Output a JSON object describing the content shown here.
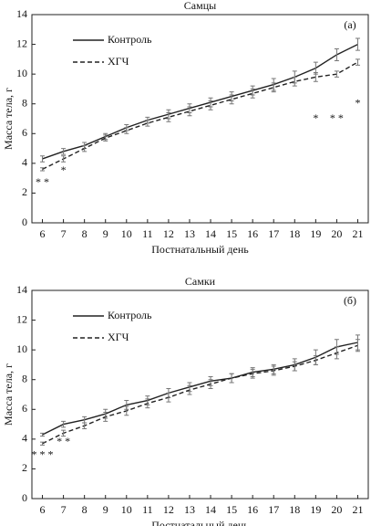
{
  "chart_data": [
    {
      "type": "line",
      "title": "Самцы",
      "panel_label": "(а)",
      "xlabel": "Постнатальный день",
      "ylabel": "Масса тела, г",
      "x": [
        6,
        7,
        8,
        9,
        10,
        11,
        12,
        13,
        14,
        15,
        16,
        17,
        18,
        19,
        20,
        21
      ],
      "xlim": [
        5.5,
        21.5
      ],
      "xticks": [
        6,
        7,
        8,
        9,
        10,
        11,
        12,
        13,
        14,
        15,
        16,
        17,
        18,
        19,
        20,
        21
      ],
      "ylim": [
        0,
        14
      ],
      "yticks": [
        0,
        2,
        4,
        6,
        8,
        10,
        12,
        14
      ],
      "series": [
        {
          "name": "Контроль",
          "color": "#222222",
          "dash": false,
          "values": [
            4.3,
            4.8,
            5.2,
            5.8,
            6.4,
            6.9,
            7.3,
            7.7,
            8.1,
            8.5,
            8.9,
            9.3,
            9.8,
            10.4,
            11.3,
            12.0
          ],
          "errors": [
            0.2,
            0.2,
            0.2,
            0.2,
            0.2,
            0.2,
            0.3,
            0.3,
            0.3,
            0.3,
            0.3,
            0.4,
            0.4,
            0.4,
            0.4,
            0.4
          ]
        },
        {
          "name": "ХГЧ",
          "color": "#222222",
          "dash": true,
          "values": [
            3.6,
            4.3,
            5.0,
            5.7,
            6.2,
            6.7,
            7.1,
            7.5,
            7.9,
            8.3,
            8.7,
            9.1,
            9.5,
            9.8,
            10.0,
            10.8
          ],
          "errors": [
            0.1,
            0.2,
            0.2,
            0.2,
            0.2,
            0.2,
            0.3,
            0.3,
            0.3,
            0.3,
            0.3,
            0.3,
            0.3,
            0.3,
            0.2,
            0.2
          ]
        }
      ],
      "annotations": [
        {
          "x": 6,
          "y": 2.7,
          "text": "* *"
        },
        {
          "x": 7,
          "y": 3.5,
          "text": "*"
        },
        {
          "x": 19,
          "y": 7.0,
          "text": "*"
        },
        {
          "x": 20,
          "y": 7.0,
          "text": "* *"
        },
        {
          "x": 21,
          "y": 8.0,
          "text": "*"
        }
      ]
    },
    {
      "type": "line",
      "title": "Самки",
      "panel_label": "(б)",
      "xlabel": "Постнатальный день",
      "ylabel": "Масса тела, г",
      "x": [
        6,
        7,
        8,
        9,
        10,
        11,
        12,
        13,
        14,
        15,
        16,
        17,
        18,
        19,
        20,
        21
      ],
      "xlim": [
        5.5,
        21.5
      ],
      "xticks": [
        6,
        7,
        8,
        9,
        10,
        11,
        12,
        13,
        14,
        15,
        16,
        17,
        18,
        19,
        20,
        21
      ],
      "ylim": [
        0,
        14
      ],
      "yticks": [
        0,
        2,
        4,
        6,
        8,
        10,
        12,
        14
      ],
      "series": [
        {
          "name": "Контроль",
          "color": "#222222",
          "dash": false,
          "values": [
            4.3,
            5.0,
            5.3,
            5.7,
            6.3,
            6.6,
            7.1,
            7.5,
            7.9,
            8.1,
            8.5,
            8.7,
            9.0,
            9.5,
            10.2,
            10.5
          ],
          "errors": [
            0.1,
            0.2,
            0.2,
            0.3,
            0.3,
            0.3,
            0.3,
            0.3,
            0.3,
            0.3,
            0.3,
            0.3,
            0.4,
            0.5,
            0.5,
            0.5
          ]
        },
        {
          "name": "ХГЧ",
          "color": "#222222",
          "dash": true,
          "values": [
            3.7,
            4.4,
            4.9,
            5.5,
            5.9,
            6.4,
            6.8,
            7.3,
            7.7,
            8.1,
            8.4,
            8.6,
            8.9,
            9.3,
            9.8,
            10.3
          ],
          "errors": [
            0.1,
            0.2,
            0.2,
            0.3,
            0.3,
            0.3,
            0.3,
            0.3,
            0.3,
            0.3,
            0.3,
            0.3,
            0.3,
            0.3,
            0.4,
            0.4
          ]
        }
      ],
      "annotations": [
        {
          "x": 6,
          "y": 2.9,
          "text": "* * *"
        },
        {
          "x": 7,
          "y": 3.8,
          "text": "* *"
        }
      ]
    }
  ]
}
